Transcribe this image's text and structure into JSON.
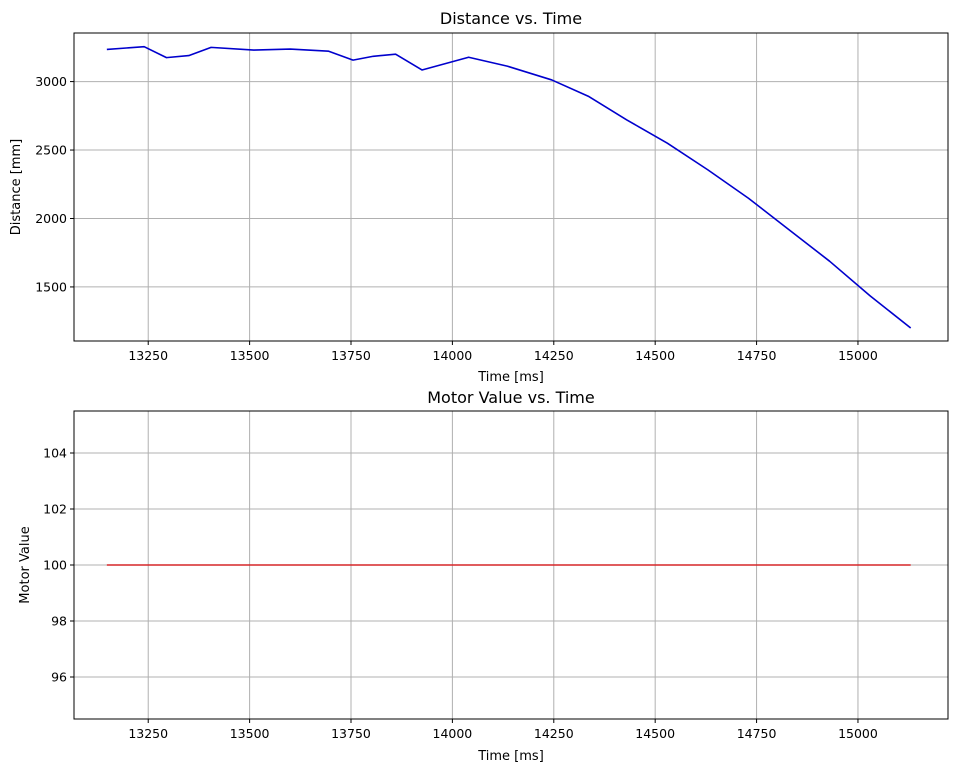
{
  "colors": {
    "distance_line": "#0000cd",
    "motor_line": "#d62728",
    "grid": "#b0b0b0"
  },
  "chart_data": [
    {
      "type": "line",
      "title": "Distance vs. Time",
      "xlabel": "Time [ms]",
      "ylabel": "Distance [mm]",
      "xlim": [
        13067,
        15222
      ],
      "ylim": [
        1105,
        3355
      ],
      "xticks": [
        13250,
        13500,
        13750,
        14000,
        14250,
        14500,
        14750,
        15000
      ],
      "yticks": [
        1500,
        2000,
        2500,
        3000
      ],
      "grid": true,
      "series": [
        {
          "color": "#0000cd",
          "x": [
            13148,
            13240,
            13295,
            13350,
            13405,
            13510,
            13600,
            13695,
            13755,
            13805,
            13860,
            13925,
            14040,
            14135,
            14245,
            14335,
            14430,
            14530,
            14630,
            14730,
            14830,
            14930,
            15030,
            15130
          ],
          "y": [
            3235,
            3255,
            3175,
            3190,
            3250,
            3230,
            3238,
            3222,
            3157,
            3185,
            3200,
            3085,
            3178,
            3113,
            3012,
            2893,
            2720,
            2550,
            2355,
            2148,
            1918,
            1688,
            1435,
            1200
          ]
        }
      ]
    },
    {
      "type": "line",
      "title": "Motor Value vs. Time",
      "xlabel": "Time [ms]",
      "ylabel": "Motor Value",
      "xlim": [
        13067,
        15222
      ],
      "ylim": [
        94.5,
        105.5
      ],
      "xticks": [
        13250,
        13500,
        13750,
        14000,
        14250,
        14500,
        14750,
        15000
      ],
      "yticks": [
        96,
        98,
        100,
        102,
        104
      ],
      "grid": true,
      "series": [
        {
          "color": "#d62728",
          "x": [
            13148,
            15130
          ],
          "y": [
            100,
            100
          ]
        }
      ]
    }
  ]
}
